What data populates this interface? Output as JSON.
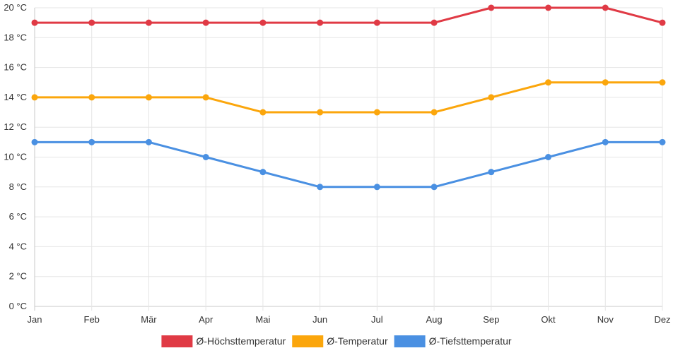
{
  "chart_data": {
    "type": "line",
    "categories": [
      "Jan",
      "Feb",
      "Mär",
      "Apr",
      "Mai",
      "Jun",
      "Jul",
      "Aug",
      "Sep",
      "Okt",
      "Nov",
      "Dez"
    ],
    "series": [
      {
        "name": "Ø-Höchsttemperatur",
        "color": "#e03a45",
        "values": [
          19,
          19,
          19,
          19,
          19,
          19,
          19,
          19,
          20,
          20,
          20,
          19
        ]
      },
      {
        "name": "Ø-Temperatur",
        "color": "#fba60c",
        "values": [
          14,
          14,
          14,
          14,
          13,
          13,
          13,
          13,
          14,
          15,
          15,
          15
        ]
      },
      {
        "name": "Ø-Tiefsttemperatur",
        "color": "#4a90e2",
        "values": [
          11,
          11,
          11,
          10,
          9,
          8,
          8,
          8,
          9,
          10,
          11,
          11
        ]
      }
    ],
    "y_ticks": [
      "0 °C",
      "2 °C",
      "4 °C",
      "6 °C",
      "8 °C",
      "10 °C",
      "12 °C",
      "14 °C",
      "16 °C",
      "18 °C",
      "20 °C"
    ],
    "ylim": [
      0,
      20
    ],
    "y_step": 2,
    "grid": true,
    "legend_position": "bottom"
  }
}
